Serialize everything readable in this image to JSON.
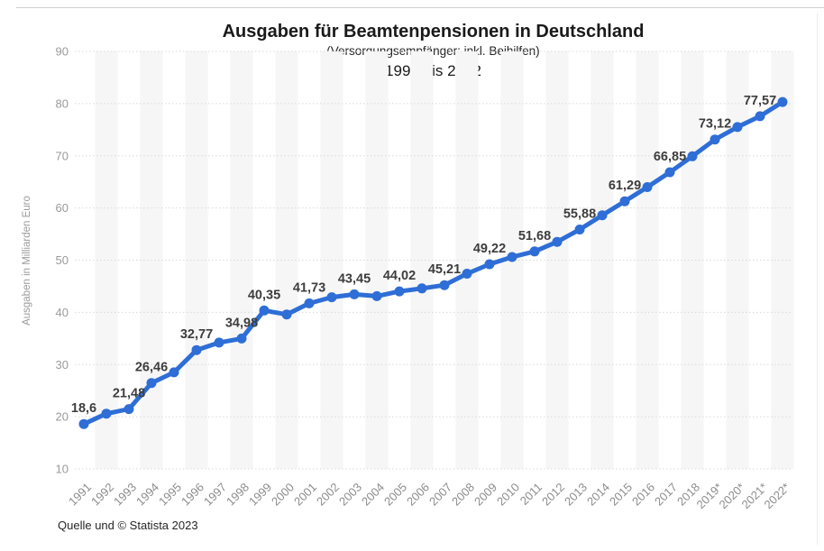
{
  "footer": {
    "source": "Quelle und © Statista 2023"
  },
  "colors": {
    "line": "#2e6ed6",
    "grid": "#d9d9d9",
    "stripe": "#f6f6f6",
    "tick_text": "#9a9a9a",
    "point_label_text": "#3d3d3d",
    "divider": "#cfcfcf"
  },
  "chart_data": {
    "type": "line",
    "title": "Ausgaben für Beamtenpensionen in Deutschland",
    "subtitle": "(Versorgungsempfänger; inkl. Beihilfen)",
    "period": "1991 bis 2022",
    "xlabel": "",
    "ylabel": "Ausgaben in Milliarden Euro",
    "ylim": [
      10,
      90
    ],
    "yticks": [
      10,
      20,
      30,
      40,
      50,
      60,
      70,
      80,
      90
    ],
    "grid": true,
    "legend": false,
    "categories": [
      "1991",
      "1992",
      "1993",
      "1994",
      "1995",
      "1996",
      "1997",
      "1998",
      "1999",
      "2000",
      "2001",
      "2002",
      "2003",
      "2004",
      "2005",
      "2006",
      "2007",
      "2008",
      "2009",
      "2010",
      "2011",
      "2012",
      "2013",
      "2014",
      "2015",
      "2016",
      "2017",
      "2018",
      "2019*",
      "2020*",
      "2021*",
      "2022*"
    ],
    "values": [
      18.6,
      20.6,
      21.48,
      26.46,
      28.5,
      32.77,
      34.2,
      34.98,
      40.35,
      39.6,
      41.73,
      42.9,
      43.45,
      43.1,
      44.02,
      44.6,
      45.21,
      47.4,
      49.22,
      50.6,
      51.68,
      53.5,
      55.88,
      58.6,
      61.29,
      64.0,
      66.85,
      69.9,
      73.12,
      75.5,
      77.57,
      80.3
    ],
    "point_labels": [
      "18,6",
      null,
      "21,48",
      "26,46",
      null,
      "32,77",
      null,
      "34,98",
      "40,35",
      null,
      "41,73",
      null,
      "43,45",
      null,
      "44,02",
      null,
      "45,21",
      null,
      "49,22",
      null,
      "51,68",
      null,
      "55,88",
      null,
      "61,29",
      null,
      "66,85",
      null,
      "73,12",
      null,
      "77,57",
      null
    ],
    "line_color": "#2e6ed6"
  }
}
